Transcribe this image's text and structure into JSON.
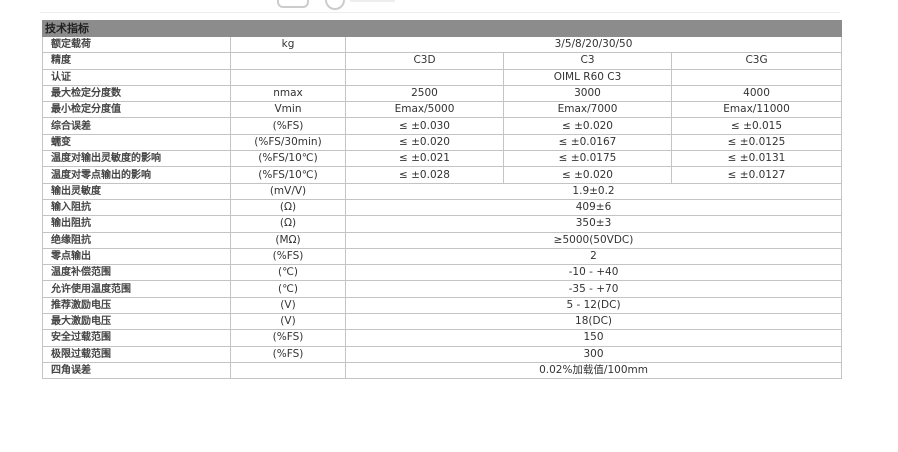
{
  "section_title": "技术指标",
  "rows": [
    {
      "name": "额定载荷",
      "unit": "kg",
      "span": "3/5/8/20/30/50"
    },
    {
      "name": "精度",
      "unit": "",
      "c3d": "C3D",
      "c3": "C3",
      "c3g": "C3G"
    },
    {
      "name": "认证",
      "unit": "",
      "c3d": "",
      "c3": "OIML R60 C3",
      "c3g": ""
    },
    {
      "name": "最大检定分度数",
      "unit": "nmax",
      "c3d": "2500",
      "c3": "3000",
      "c3g": "4000"
    },
    {
      "name": "最小检定分度值",
      "unit": "Vmin",
      "c3d": "Emax/5000",
      "c3": "Emax/7000",
      "c3g": "Emax/11000"
    },
    {
      "name": "综合误差",
      "unit": "(%FS)",
      "c3d": "≤ ±0.030",
      "c3": "≤ ±0.020",
      "c3g": "≤ ±0.015"
    },
    {
      "name": "蠕变",
      "unit": "(%FS/30min)",
      "c3d": "≤ ±0.020",
      "c3": "≤ ±0.0167",
      "c3g": "≤ ±0.0125"
    },
    {
      "name": "温度对输出灵敏度的影响",
      "unit": "(%FS/10℃)",
      "c3d": "≤ ±0.021",
      "c3": "≤ ±0.0175",
      "c3g": "≤ ±0.0131"
    },
    {
      "name": "温度对零点输出的影响",
      "unit": "(%FS/10℃)",
      "c3d": "≤ ±0.028",
      "c3": "≤ ±0.020",
      "c3g": "≤ ±0.0127"
    },
    {
      "name": "输出灵敏度",
      "unit": "(mV/V)",
      "span": "1.9±0.2"
    },
    {
      "name": "输入阻抗",
      "unit": "(Ω)",
      "span": "409±6"
    },
    {
      "name": "输出阻抗",
      "unit": "(Ω)",
      "span": "350±3"
    },
    {
      "name": "绝缘阻抗",
      "unit": "(MΩ)",
      "span": "≥5000(50VDC)"
    },
    {
      "name": "零点输出",
      "unit": "(%FS)",
      "span": "2"
    },
    {
      "name": "温度补偿范围",
      "unit": "(℃)",
      "span": "-10 - +40"
    },
    {
      "name": "允许使用温度范围",
      "unit": "(℃)",
      "span": "-35 - +70"
    },
    {
      "name": "推荐激励电压",
      "unit": "(V)",
      "span": "5 - 12(DC)"
    },
    {
      "name": "最大激励电压",
      "unit": "(V)",
      "span": "18(DC)"
    },
    {
      "name": "安全过载范围",
      "unit": "(%FS)",
      "span": "150"
    },
    {
      "name": "极限过载范围",
      "unit": "(%FS)",
      "span": "300"
    },
    {
      "name": "四角误差",
      "unit": "",
      "span": "0.02%加载值/100mm"
    }
  ]
}
